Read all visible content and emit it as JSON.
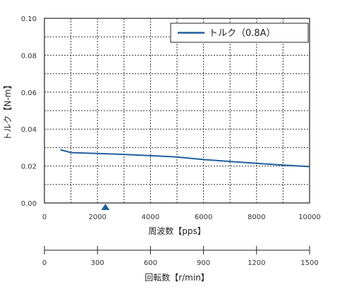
{
  "chart_data": {
    "type": "line",
    "title": "",
    "xlabel": "周波数【pps】",
    "ylabel": "トルク【N-m】",
    "xlim": [
      0,
      10000
    ],
    "ylim": [
      0,
      0.1
    ],
    "x_ticks": [
      "0",
      "2000",
      "4000",
      "6000",
      "8000",
      "10000"
    ],
    "y_ticks": [
      "0.00",
      "0.02",
      "0.04",
      "0.06",
      "0.08",
      "0.10"
    ],
    "grid": true,
    "legend_position": "top-right",
    "series": [
      {
        "name": "トルク（0.8A）",
        "color": "#1f5fa0",
        "x": [
          600,
          1000,
          2000,
          3000,
          4000,
          5000,
          6000,
          7000,
          8000,
          9000,
          10000
        ],
        "y": [
          0.0288,
          0.0273,
          0.0268,
          0.0263,
          0.0256,
          0.0249,
          0.0235,
          0.0225,
          0.0215,
          0.0205,
          0.0197
        ]
      }
    ],
    "marker": {
      "x": 2300,
      "shape": "triangle",
      "color": "#1f5fa0"
    },
    "secondary_axis": {
      "label": "回転数【r/min】",
      "range": [
        0,
        1500
      ],
      "ticks": [
        "0",
        "300",
        "600",
        "900",
        "1200",
        "1500"
      ]
    }
  }
}
